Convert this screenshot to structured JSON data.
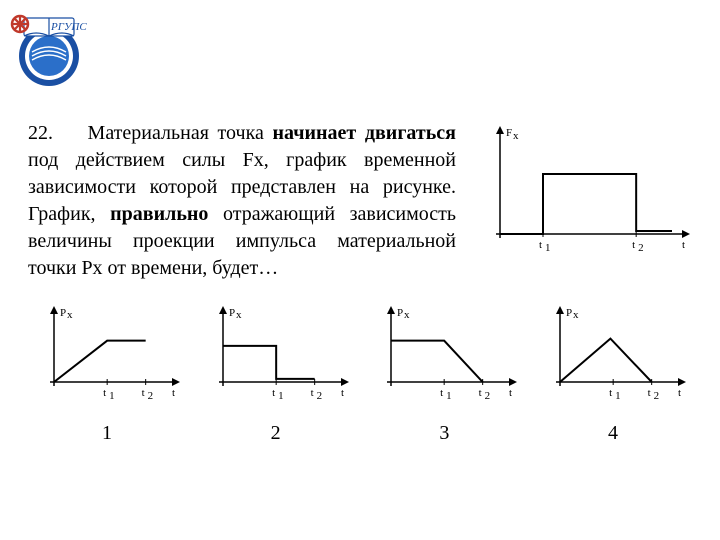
{
  "logo": {
    "text": "РГУПС",
    "bg": "#1a4fa3",
    "accent_blue": "#2b6fc9",
    "accent_red": "#c0392b",
    "accent_white": "#ffffff"
  },
  "question": {
    "number": "22.",
    "p1a": "Материальная точка ",
    "p1b": "начинает двигаться",
    "p1c": " под действием силы Fx, график временной зависимости которой представлен на рисунке. График, ",
    "p1d": "правильно",
    "p1e": " отражающий зависимость величины проекции импульса материальной точки Рх от времени, будет…"
  },
  "main_graph": {
    "type": "step-function",
    "y_label": "Fₓ",
    "x_label": "t",
    "x_ticks": [
      "t",
      "t"
    ],
    "x_subs": [
      "1",
      "2"
    ],
    "axis_color": "#000000",
    "line_color": "#000000",
    "line_width": 2,
    "background": "#ffffff",
    "xlim": [
      0,
      120
    ],
    "ylim": [
      0,
      60
    ],
    "t1": 30,
    "t2": 95,
    "level": 40,
    "tail_level": 2
  },
  "options": [
    {
      "label": "1",
      "graph": {
        "type": "line",
        "y_label": "Pₓ",
        "x_label": "t",
        "x_ticks": [
          "t",
          "t"
        ],
        "x_subs": [
          "1",
          "2"
        ],
        "axis_color": "#000000",
        "line_color": "#000000",
        "line_width": 2,
        "xlim": [
          0,
          120
        ],
        "ylim": [
          0,
          60
        ],
        "points": [
          [
            0,
            0
          ],
          [
            58,
            40
          ],
          [
            100,
            40
          ]
        ]
      }
    },
    {
      "label": "2",
      "graph": {
        "type": "line",
        "y_label": "Pₓ",
        "x_label": "t",
        "x_ticks": [
          "t",
          "t"
        ],
        "x_subs": [
          "1",
          "2"
        ],
        "axis_color": "#000000",
        "line_color": "#000000",
        "line_width": 2,
        "xlim": [
          0,
          120
        ],
        "ylim": [
          0,
          60
        ],
        "points": [
          [
            0,
            35
          ],
          [
            58,
            35
          ],
          [
            58,
            3
          ],
          [
            100,
            3
          ]
        ]
      }
    },
    {
      "label": "3",
      "graph": {
        "type": "line",
        "y_label": "Pₓ",
        "x_label": "t",
        "x_ticks": [
          "t",
          "t"
        ],
        "x_subs": [
          "1",
          "2"
        ],
        "axis_color": "#000000",
        "line_color": "#000000",
        "line_width": 2,
        "xlim": [
          0,
          120
        ],
        "ylim": [
          0,
          60
        ],
        "points": [
          [
            0,
            40
          ],
          [
            58,
            40
          ],
          [
            100,
            0
          ]
        ]
      }
    },
    {
      "label": "4",
      "graph": {
        "type": "line",
        "y_label": "Pₓ",
        "x_label": "t",
        "x_ticks": [
          "t",
          "t"
        ],
        "x_subs": [
          "1",
          "2"
        ],
        "axis_color": "#000000",
        "line_color": "#000000",
        "line_width": 2,
        "xlim": [
          0,
          120
        ],
        "ylim": [
          0,
          60
        ],
        "points": [
          [
            0,
            0
          ],
          [
            55,
            42
          ],
          [
            100,
            0
          ]
        ]
      }
    }
  ]
}
